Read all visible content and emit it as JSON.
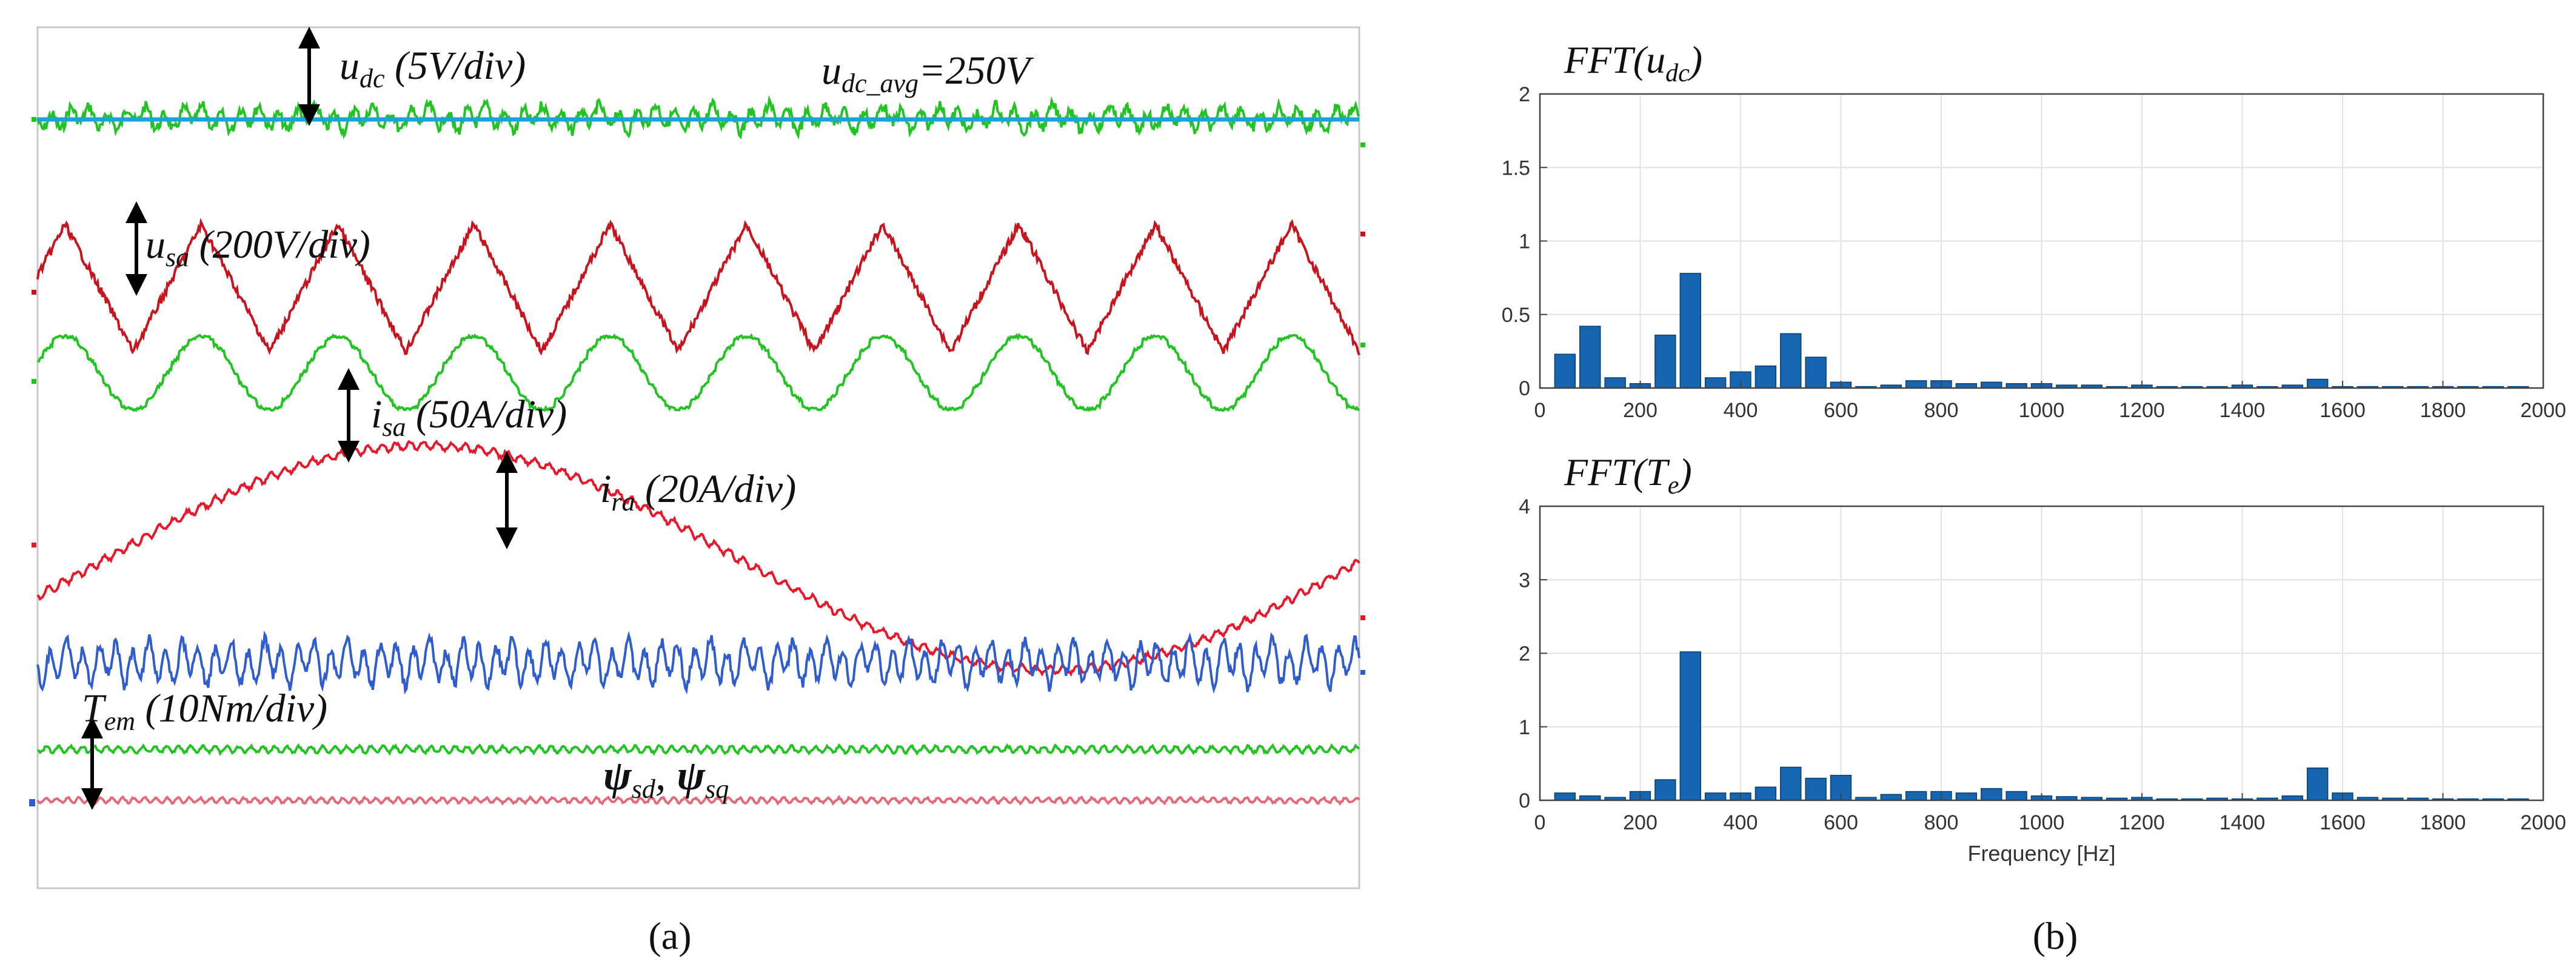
{
  "panel_a": {
    "caption": "(a)",
    "annotations": {
      "udc_label": "u",
      "udc_sub": "dc",
      "udc_scale": " (5V/div)",
      "udc_avg_main": "u",
      "udc_avg_sub": "dc_avg",
      "udc_avg_value": "=250V",
      "usa_label": "u",
      "usa_sub": "sa",
      "usa_scale": " (200V/div)",
      "isa_label": "i",
      "isa_sub": "sa",
      "isa_scale": " (50A/div)",
      "ira_label": "i",
      "ira_sub": "ra",
      "ira_scale": " (20A/div)",
      "tem_label": "T",
      "tem_sub": "em",
      "tem_scale": " (10Nm/div)",
      "psi_sd": "ψ",
      "psi_sd_sub": "sd",
      "psi_sep": ",",
      "psi_sq": "ψ",
      "psi_sq_sub": "sq"
    }
  },
  "panel_b": {
    "caption": "(b)"
  },
  "colors": {
    "green": "#22c422",
    "red_dark": "#c8141e",
    "red": "#e8182a",
    "blue": "#2f5ccf",
    "cyan": "#1aa3d9",
    "bar": "#1565b0",
    "pink": "#e46a7a"
  },
  "chart_data": [
    {
      "type": "bar",
      "title_main": "FFT(u",
      "title_sub": "dc",
      "title_end": ")",
      "xlabel": "",
      "ylabel": "",
      "xlim": [
        0,
        2000
      ],
      "ylim": [
        0,
        2
      ],
      "grid": true,
      "xticks": [
        "0",
        "200",
        "400",
        "600",
        "800",
        "1000",
        "1200",
        "1400",
        "1600",
        "1800",
        "2000"
      ],
      "yticks": [
        "0",
        "0.5",
        "1",
        "1.5",
        "2"
      ],
      "x": [
        50,
        100,
        150,
        200,
        250,
        300,
        350,
        400,
        450,
        500,
        550,
        600,
        650,
        700,
        750,
        800,
        850,
        900,
        950,
        1000,
        1050,
        1100,
        1150,
        1200,
        1250,
        1300,
        1350,
        1400,
        1450,
        1500,
        1550,
        1600,
        1650,
        1700,
        1750,
        1800,
        1850,
        1900,
        1950
      ],
      "values": [
        0.23,
        0.42,
        0.07,
        0.03,
        0.36,
        0.78,
        0.07,
        0.11,
        0.15,
        0.37,
        0.21,
        0.04,
        0.01,
        0.02,
        0.05,
        0.05,
        0.03,
        0.04,
        0.03,
        0.03,
        0.02,
        0.02,
        0.01,
        0.02,
        0.01,
        0.01,
        0.01,
        0.02,
        0.01,
        0.02,
        0.06,
        0.01,
        0.01,
        0.01,
        0.01,
        0.01,
        0.01,
        0.01,
        0.01
      ]
    },
    {
      "type": "bar",
      "title_main": "FFT(T",
      "title_sub": "e",
      "title_end": ")",
      "xlabel": "Frequency [Hz]",
      "ylabel": "",
      "xlim": [
        0,
        2000
      ],
      "ylim": [
        0,
        4
      ],
      "grid": true,
      "xticks": [
        "0",
        "200",
        "400",
        "600",
        "800",
        "1000",
        "1200",
        "1400",
        "1600",
        "1800",
        "2000"
      ],
      "yticks": [
        "0",
        "1",
        "2",
        "3",
        "4"
      ],
      "x": [
        50,
        100,
        150,
        200,
        250,
        300,
        350,
        400,
        450,
        500,
        550,
        600,
        650,
        700,
        750,
        800,
        850,
        900,
        950,
        1000,
        1050,
        1100,
        1150,
        1200,
        1250,
        1300,
        1350,
        1400,
        1450,
        1500,
        1550,
        1600,
        1650,
        1700,
        1750,
        1800,
        1850,
        1900,
        1950
      ],
      "values": [
        0.1,
        0.06,
        0.04,
        0.12,
        0.28,
        2.02,
        0.1,
        0.1,
        0.18,
        0.45,
        0.3,
        0.34,
        0.04,
        0.08,
        0.12,
        0.12,
        0.1,
        0.16,
        0.12,
        0.06,
        0.05,
        0.04,
        0.03,
        0.04,
        0.02,
        0.02,
        0.03,
        0.02,
        0.03,
        0.06,
        0.44,
        0.1,
        0.04,
        0.03,
        0.03,
        0.02,
        0.02,
        0.02,
        0.02
      ]
    }
  ]
}
